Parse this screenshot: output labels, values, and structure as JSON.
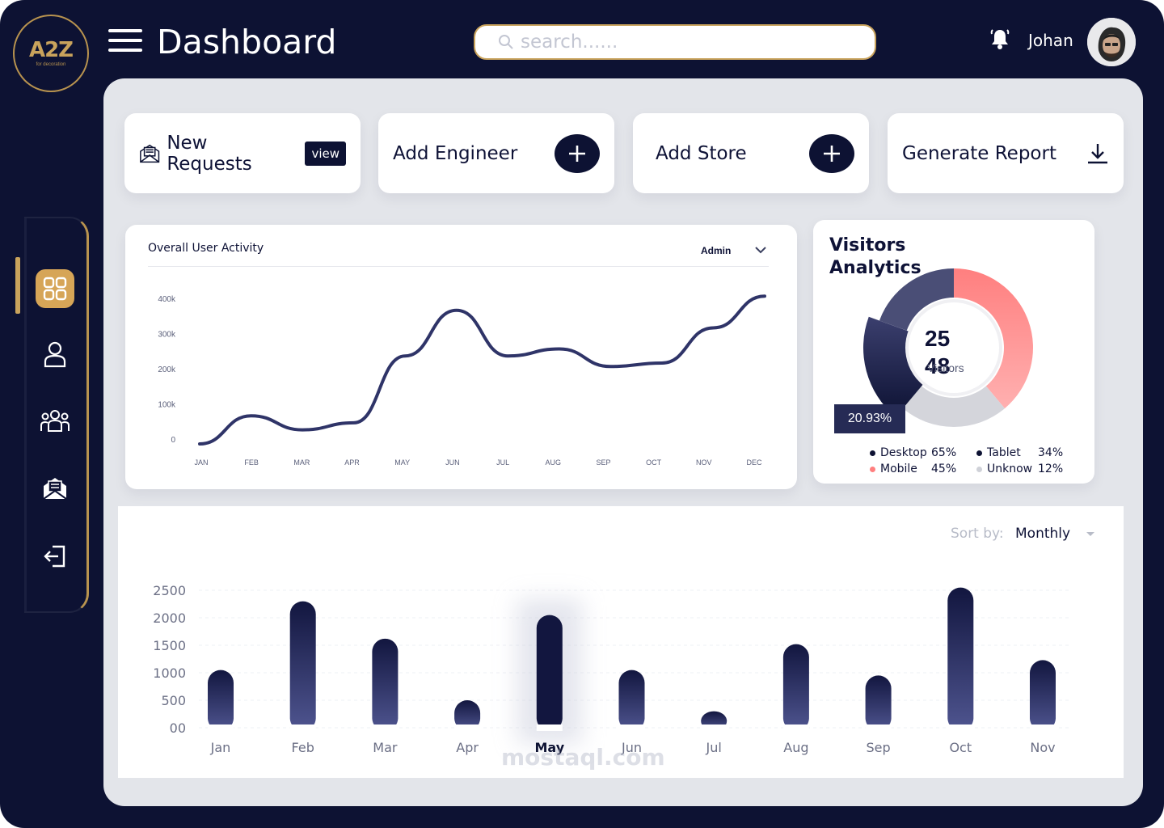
{
  "logo": {
    "main": "A2Z",
    "sub": "for decoration"
  },
  "header": {
    "title": "Dashboard",
    "search_placeholder": "search......",
    "user_name": "Johan"
  },
  "actions": {
    "new_requests": "New Requests",
    "view_label": "view",
    "add_engineer": "Add Engineer",
    "add_store": "Add Store",
    "generate_report": "Generate Report"
  },
  "activity": {
    "title": "Overall User Activity",
    "filter": "Admin"
  },
  "visitors": {
    "title": "Visitors Analytics",
    "center_value": "25 48",
    "center_line1": "25",
    "center_line2": "48",
    "center_label": "Visitors",
    "highlight": "20.93%",
    "legend": [
      {
        "label": "Desktop",
        "value": "65%",
        "color": "#0d1233"
      },
      {
        "label": "Tablet",
        "value": "34%",
        "color": "#0d1233"
      },
      {
        "label": "Mobile",
        "value": "45%",
        "color": "#ff7f7f"
      },
      {
        "label": "Unknow",
        "value": "12%",
        "color": "#cfd1d8"
      }
    ]
  },
  "chart_data": [
    {
      "type": "line",
      "title": "Overall User Activity",
      "categories": [
        "JAN",
        "FEB",
        "MAR",
        "APR",
        "MAY",
        "JUN",
        "JUL",
        "AUG",
        "SEP",
        "OCT",
        "NOV",
        "DEC"
      ],
      "yticks": [
        "400k",
        "300k",
        "200k",
        "100k",
        "0"
      ],
      "ylim": [
        0,
        400000
      ],
      "series": [
        {
          "values": [
            0,
            80000,
            40000,
            60000,
            250000,
            380000,
            250000,
            270000,
            220000,
            230000,
            330000,
            420000
          ]
        }
      ]
    },
    {
      "type": "pie",
      "title": "Visitors Analytics",
      "slices": [
        {
          "label": "Desktop",
          "value": 65
        },
        {
          "label": "Tablet",
          "value": 34
        },
        {
          "label": "Mobile",
          "value": 45
        },
        {
          "label": "Unknow",
          "value": 12
        }
      ]
    },
    {
      "type": "bar",
      "sort_label": "Sort by:",
      "sort_value": "Monthly",
      "categories": [
        "Jan",
        "Feb",
        "Mar",
        "Apr",
        "May",
        "Jun",
        "Jul",
        "Aug",
        "Sep",
        "Oct",
        "Nov"
      ],
      "values": [
        1050,
        2300,
        1620,
        500,
        2050,
        1050,
        300,
        1520,
        950,
        2550,
        1230
      ],
      "highlight": "May",
      "yticks": [
        "2500",
        "2000",
        "1500",
        "1000",
        "500",
        "00"
      ],
      "ylim": [
        0,
        2500
      ]
    }
  ],
  "watermark": "mostaql.com",
  "colors": {
    "navy": "#0d1233",
    "gold": "#c9a35c",
    "coral": "#ff7f7f",
    "panel": "#e3e5ea"
  }
}
